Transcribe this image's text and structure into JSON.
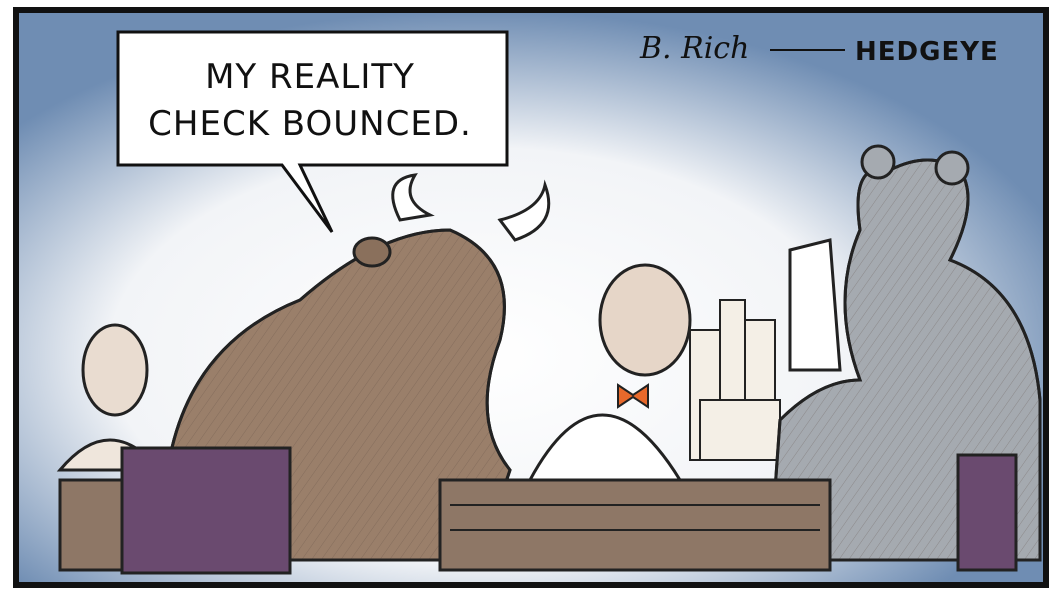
{
  "speech_bubble": {
    "lines": [
      "MY REALITY",
      "CHECK BOUNCED."
    ]
  },
  "signature": "B. Rich",
  "brand": "HEDGEYE"
}
